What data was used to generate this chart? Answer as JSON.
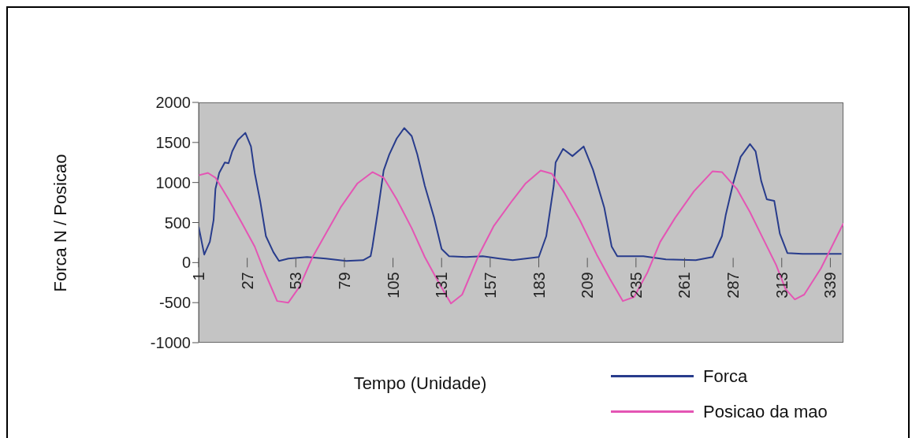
{
  "chart_data": {
    "type": "line",
    "xlabel": "Tempo (Unidade)",
    "ylabel": "Forca N / Posicao",
    "xlim": [
      1,
      346
    ],
    "xticks": [
      1,
      27,
      53,
      79,
      105,
      131,
      157,
      183,
      209,
      235,
      261,
      287,
      313,
      339
    ],
    "ylim": [
      -1000,
      2000
    ],
    "yticks": [
      -1000,
      -500,
      0,
      500,
      1000,
      1500,
      2000
    ],
    "legend": "bottom right",
    "marker": "none",
    "line_style": "solid",
    "series": [
      {
        "name": "Forca",
        "color": "#283c8c",
        "x": [
          1,
          4,
          7,
          9,
          10,
          12,
          15,
          17,
          19,
          22,
          26,
          29,
          31,
          34,
          37,
          41,
          44,
          49,
          59,
          69,
          80,
          89,
          93,
          94,
          97,
          100,
          103,
          107,
          111,
          115,
          118,
          122,
          127,
          131,
          135,
          144,
          153,
          162,
          169,
          183,
          187,
          191,
          192,
          196,
          201,
          207,
          212,
          218,
          222,
          225,
          239,
          251,
          267,
          276,
          281,
          283,
          287,
          291,
          296,
          299,
          302,
          305,
          309,
          312,
          316,
          324,
          345
        ],
        "values": [
          450,
          100,
          260,
          530,
          920,
          1120,
          1250,
          1240,
          1390,
          1530,
          1620,
          1450,
          1120,
          760,
          330,
          130,
          20,
          50,
          70,
          50,
          20,
          30,
          80,
          200,
          660,
          1150,
          1350,
          1550,
          1680,
          1580,
          1350,
          960,
          560,
          170,
          80,
          70,
          80,
          50,
          30,
          70,
          330,
          960,
          1250,
          1420,
          1330,
          1450,
          1160,
          690,
          200,
          80,
          80,
          40,
          30,
          70,
          330,
          590,
          990,
          1320,
          1480,
          1390,
          1020,
          790,
          770,
          360,
          120,
          110,
          110
        ]
      },
      {
        "name": "Posicao da mao",
        "color": "#e455b4",
        "x": [
          1,
          6,
          10,
          17,
          24,
          31,
          36,
          43,
          49,
          55,
          62,
          69,
          77,
          86,
          94,
          100,
          107,
          115,
          122,
          129,
          136,
          142,
          151,
          159,
          169,
          176,
          184,
          190,
          197,
          205,
          214,
          221,
          228,
          234,
          241,
          248,
          256,
          266,
          276,
          281,
          289,
          296,
          303,
          310,
          315,
          320,
          325,
          334,
          346
        ],
        "values": [
          1090,
          1120,
          1060,
          790,
          500,
          200,
          -100,
          -480,
          -500,
          -300,
          70,
          360,
          690,
          990,
          1130,
          1060,
          790,
          430,
          70,
          -230,
          -510,
          -400,
          100,
          460,
          780,
          990,
          1150,
          1110,
          860,
          530,
          100,
          -200,
          -480,
          -430,
          -130,
          260,
          560,
          890,
          1140,
          1130,
          920,
          630,
          300,
          -30,
          -330,
          -460,
          -400,
          -70,
          490
        ]
      }
    ]
  }
}
